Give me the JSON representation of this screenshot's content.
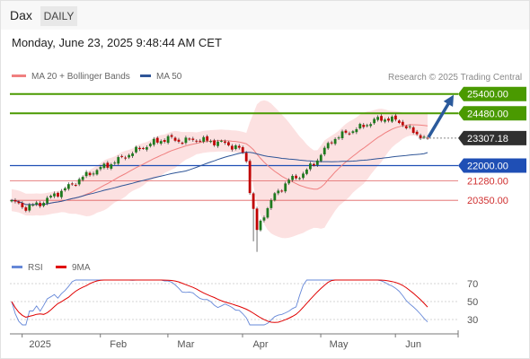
{
  "header": {
    "symbol": "Dax",
    "timeframe": "DAILY",
    "datetime": "Monday, June 23, 2025 9:48:44 AM CET"
  },
  "legend": {
    "ma20_label": "MA 20 + Bollinger Bands",
    "ma50_label": "MA 50",
    "credit": "Research © 2025 Trading Central"
  },
  "colors": {
    "bollinger_fill": "#fcdcdc",
    "ma20": "#f08080",
    "ma50": "#2f5597",
    "bullish": "#1e7a1e",
    "bearish": "#c00000",
    "resistance": "#4a9a00",
    "support": "#1f4fb5",
    "minor_support": "#e06060",
    "last_price": "#303030",
    "rsi": "#6688d8",
    "rsi_ma": "#e00000",
    "forecast_arrow": "#2b5a9c"
  },
  "chart_data": [
    {
      "type": "candlestick",
      "title": "Dax",
      "ylim": [
        17800,
        25900
      ],
      "x_labels": [
        "2025",
        "Feb",
        "Mar",
        "Apr",
        "May",
        "Jun"
      ],
      "last_price": 23307.18,
      "levels": [
        {
          "value": 25400.0,
          "label": "25400.00",
          "kind": "resistance"
        },
        {
          "value": 24480.0,
          "label": "24480.00",
          "kind": "resistance"
        },
        {
          "value": 22000.0,
          "label": "22000.00",
          "kind": "support"
        },
        {
          "value": 21280.0,
          "label": "21280.00",
          "kind": "minor_support"
        },
        {
          "value": 20350.0,
          "label": "20350.00",
          "kind": "minor_support"
        }
      ],
      "forecast": {
        "from": 23307.18,
        "to": 25400
      }
    },
    {
      "type": "line",
      "series": [
        {
          "name": "RSI"
        },
        {
          "name": "9MA"
        }
      ],
      "ylim": [
        20,
        80
      ],
      "y_ticks": [
        70,
        50,
        30
      ]
    }
  ],
  "rsi_legend": {
    "rsi": "RSI",
    "ma": "9MA"
  }
}
